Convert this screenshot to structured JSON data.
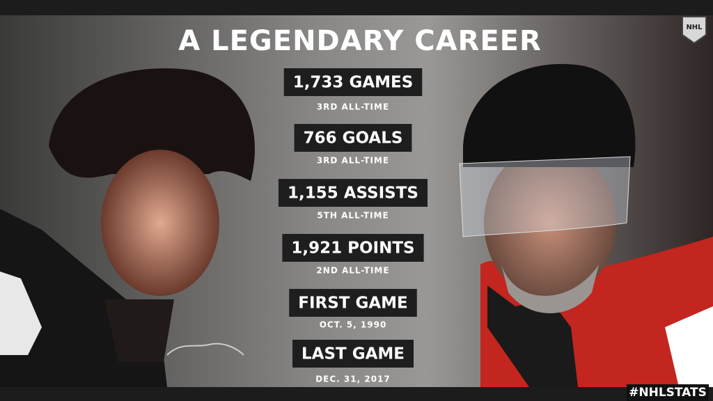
{
  "header": {
    "title": "A LEGENDARY CAREER",
    "logo": "NHL"
  },
  "stats": [
    {
      "label": "1,733 GAMES",
      "sub": "3RD ALL-TIME"
    },
    {
      "label": "766 GOALS",
      "sub": "3RD ALL-TIME"
    },
    {
      "label": "1,155 ASSISTS",
      "sub": "5TH ALL-TIME"
    },
    {
      "label": "1,921 POINTS",
      "sub": "2ND ALL-TIME"
    },
    {
      "label": "FIRST GAME",
      "sub": "OCT. 5, 1990"
    },
    {
      "label": "LAST GAME",
      "sub": "DEC. 31, 2017"
    }
  ],
  "footer": {
    "hashtag": "#NHLSTATS"
  }
}
